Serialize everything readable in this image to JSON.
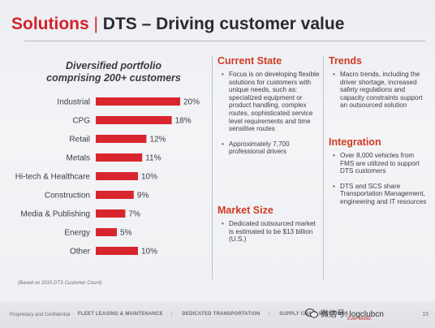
{
  "slide": {
    "title_brand": "Solutions",
    "title_sep": " | ",
    "title_rest": "DTS – Driving customer value",
    "chart_title_line1": "Diversified portfolio",
    "chart_title_line2": "comprising 200+ customers",
    "footnote": "(Based on 2015 DTS Customer Count)"
  },
  "chart_data": {
    "type": "bar",
    "orientation": "horizontal",
    "categories": [
      "Industrial",
      "CPG",
      "Retail",
      "Metals",
      "Hi-tech & Healthcare",
      "Construction",
      "Media & Publishing",
      "Energy",
      "Other"
    ],
    "values": [
      20,
      18,
      12,
      11,
      10,
      9,
      7,
      5,
      10
    ],
    "labels": [
      "20%",
      "18%",
      "12%",
      "11%",
      "10%",
      "9%",
      "7%",
      "5%",
      "10%"
    ],
    "unit": "%",
    "bar_color": "#d9262e",
    "xlim": [
      0,
      20
    ],
    "grid": false,
    "legend": "none"
  },
  "current_state": {
    "heading": "Current State",
    "bullets": [
      "Focus is on developing flexible solutions for customers with unique needs, such as: specialized equipment or product handling, complex routes, sophisticated service level requirements and time sensitive routes",
      "Approximately 7,700 professional drivers"
    ]
  },
  "market_size": {
    "heading": "Market Size",
    "bullets": [
      "Dedicated outsourced market is estimated to be $13 billion (U.S.)"
    ]
  },
  "trends": {
    "heading": "Trends",
    "bullets": [
      "Macro trends, including the driver shortage, increased safety regulations and capacity constraints support an outsourced solution"
    ]
  },
  "integration": {
    "heading": "Integration",
    "bullets": [
      "Over 8,000 vehicles from FMS are utilized to support DTS customers",
      "DTS and SCS share Transportation Management, engineering and IT resources"
    ]
  },
  "footer": {
    "confidential": "Proprietary and Confidential",
    "nav_items": [
      "FLEET LEASING & MAINTENANCE",
      "DEDICATED TRANSPORTATION",
      "SUPPLY CHAIN SOLUTIONS"
    ],
    "watermark": "微信号: logclubcn",
    "logo_tagline": "Ever better.",
    "page_number": "15"
  },
  "colors": {
    "accent_red": "#d2232a",
    "heading_orange": "#cf3b24",
    "text": "#3c3d45"
  }
}
